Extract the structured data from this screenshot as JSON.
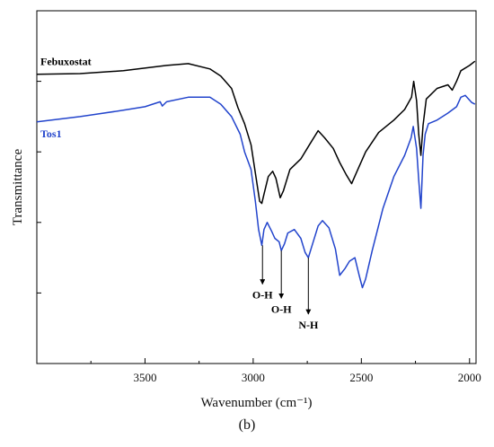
{
  "panel_label": "(b)",
  "chart_data": {
    "type": "line",
    "xlabel": "Wavenumber",
    "xlabel_unit": "(cm⁻¹)",
    "ylabel": "Transmittance",
    "x_reversed": true,
    "xlim": [
      4000,
      1970
    ],
    "ylim": [
      0,
      1
    ],
    "x_ticks": [
      3500,
      3000,
      2500,
      2000
    ],
    "y_ticks_unlabeled": 4,
    "grid": false,
    "series": [
      {
        "name": "Febuxostat",
        "color": "#000000",
        "points": [
          [
            4000,
            0.82
          ],
          [
            3800,
            0.822
          ],
          [
            3600,
            0.83
          ],
          [
            3400,
            0.845
          ],
          [
            3300,
            0.85
          ],
          [
            3200,
            0.835
          ],
          [
            3150,
            0.815
          ],
          [
            3100,
            0.78
          ],
          [
            3070,
            0.725
          ],
          [
            3040,
            0.68
          ],
          [
            3010,
            0.62
          ],
          [
            2985,
            0.52
          ],
          [
            2970,
            0.46
          ],
          [
            2960,
            0.454
          ],
          [
            2950,
            0.48
          ],
          [
            2930,
            0.53
          ],
          [
            2910,
            0.545
          ],
          [
            2895,
            0.525
          ],
          [
            2875,
            0.47
          ],
          [
            2860,
            0.49
          ],
          [
            2830,
            0.55
          ],
          [
            2780,
            0.58
          ],
          [
            2740,
            0.62
          ],
          [
            2700,
            0.66
          ],
          [
            2670,
            0.64
          ],
          [
            2630,
            0.61
          ],
          [
            2600,
            0.57
          ],
          [
            2570,
            0.535
          ],
          [
            2545,
            0.51
          ],
          [
            2520,
            0.545
          ],
          [
            2480,
            0.6
          ],
          [
            2420,
            0.655
          ],
          [
            2350,
            0.69
          ],
          [
            2300,
            0.72
          ],
          [
            2268,
            0.755
          ],
          [
            2258,
            0.8
          ],
          [
            2245,
            0.745
          ],
          [
            2235,
            0.65
          ],
          [
            2225,
            0.59
          ],
          [
            2215,
            0.675
          ],
          [
            2200,
            0.75
          ],
          [
            2150,
            0.78
          ],
          [
            2100,
            0.79
          ],
          [
            2080,
            0.775
          ],
          [
            2060,
            0.8
          ],
          [
            2040,
            0.83
          ],
          [
            2000,
            0.845
          ],
          [
            1975,
            0.857
          ]
        ]
      },
      {
        "name": "Tos1",
        "color": "#2244cc",
        "points": [
          [
            4000,
            0.685
          ],
          [
            3800,
            0.7
          ],
          [
            3600,
            0.718
          ],
          [
            3500,
            0.728
          ],
          [
            3430,
            0.742
          ],
          [
            3420,
            0.73
          ],
          [
            3400,
            0.742
          ],
          [
            3300,
            0.755
          ],
          [
            3200,
            0.755
          ],
          [
            3150,
            0.735
          ],
          [
            3100,
            0.7
          ],
          [
            3060,
            0.65
          ],
          [
            3040,
            0.6
          ],
          [
            3010,
            0.55
          ],
          [
            2990,
            0.46
          ],
          [
            2975,
            0.38
          ],
          [
            2960,
            0.335
          ],
          [
            2950,
            0.38
          ],
          [
            2935,
            0.4
          ],
          [
            2915,
            0.375
          ],
          [
            2900,
            0.355
          ],
          [
            2880,
            0.345
          ],
          [
            2870,
            0.32
          ],
          [
            2855,
            0.34
          ],
          [
            2840,
            0.37
          ],
          [
            2810,
            0.38
          ],
          [
            2780,
            0.355
          ],
          [
            2760,
            0.315
          ],
          [
            2745,
            0.3
          ],
          [
            2730,
            0.33
          ],
          [
            2700,
            0.39
          ],
          [
            2680,
            0.405
          ],
          [
            2650,
            0.385
          ],
          [
            2620,
            0.325
          ],
          [
            2600,
            0.25
          ],
          [
            2575,
            0.27
          ],
          [
            2555,
            0.29
          ],
          [
            2530,
            0.3
          ],
          [
            2510,
            0.25
          ],
          [
            2495,
            0.215
          ],
          [
            2480,
            0.24
          ],
          [
            2450,
            0.32
          ],
          [
            2400,
            0.44
          ],
          [
            2350,
            0.53
          ],
          [
            2300,
            0.59
          ],
          [
            2270,
            0.64
          ],
          [
            2260,
            0.672
          ],
          [
            2245,
            0.61
          ],
          [
            2235,
            0.52
          ],
          [
            2225,
            0.44
          ],
          [
            2215,
            0.59
          ],
          [
            2205,
            0.65
          ],
          [
            2190,
            0.68
          ],
          [
            2150,
            0.69
          ],
          [
            2100,
            0.71
          ],
          [
            2060,
            0.728
          ],
          [
            2040,
            0.755
          ],
          [
            2020,
            0.76
          ],
          [
            1990,
            0.74
          ],
          [
            1975,
            0.735
          ]
        ]
      }
    ],
    "annotations": [
      {
        "text": "O-H",
        "x": 2957,
        "arrow_from_y": 0.335,
        "arrow_to_y": 0.225
      },
      {
        "text": "O-H",
        "x": 2870,
        "arrow_from_y": 0.32,
        "arrow_to_y": 0.185
      },
      {
        "text": "N-H",
        "x": 2745,
        "arrow_from_y": 0.3,
        "arrow_to_y": 0.14
      }
    ]
  }
}
